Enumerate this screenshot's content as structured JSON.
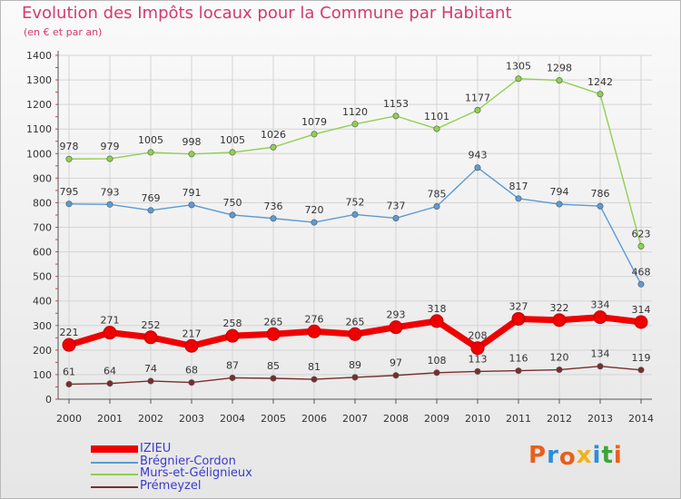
{
  "header": {
    "title": "Evolution des Impôts locaux pour la Commune par Habitant",
    "subtitle": "(en € et par an)"
  },
  "logo": {
    "text": "Proxiti",
    "colors": [
      "#e8601c",
      "#2c8fd6",
      "#e8601c",
      "#f2b21a",
      "#2c8fd6",
      "#3aa53a",
      "#e8601c"
    ]
  },
  "chart_data": {
    "type": "line",
    "categories": [
      "2000",
      "2001",
      "2002",
      "2003",
      "2004",
      "2005",
      "2006",
      "2007",
      "2008",
      "2009",
      "2010",
      "2011",
      "2012",
      "2013",
      "2014"
    ],
    "ylim": [
      0,
      1400
    ],
    "yticks": [
      0,
      100,
      200,
      300,
      400,
      500,
      600,
      700,
      800,
      900,
      1000,
      1100,
      1200,
      1300,
      1400
    ],
    "grid": true,
    "legend_position": "bottom-left",
    "series": [
      {
        "name": "IZIEU",
        "color": "#f00000",
        "emphasis": true,
        "values": [
          221,
          271,
          252,
          217,
          258,
          265,
          276,
          265,
          293,
          318,
          208,
          327,
          322,
          334,
          314
        ]
      },
      {
        "name": "Brégnier-Cordon",
        "color": "#5b9bd5",
        "emphasis": false,
        "values": [
          795,
          793,
          769,
          791,
          750,
          736,
          720,
          752,
          737,
          785,
          943,
          817,
          794,
          786,
          468
        ]
      },
      {
        "name": "Murs-et-Gélignieux",
        "color": "#8fd14f",
        "emphasis": false,
        "values": [
          978,
          979,
          1005,
          998,
          1005,
          1026,
          1079,
          1120,
          1153,
          1101,
          1177,
          1305,
          1298,
          1242,
          623
        ]
      },
      {
        "name": "Prémeyzel",
        "color": "#7a2d2d",
        "emphasis": false,
        "values": [
          61,
          64,
          74,
          68,
          87,
          85,
          81,
          89,
          97,
          108,
          113,
          116,
          120,
          134,
          119
        ]
      }
    ]
  }
}
